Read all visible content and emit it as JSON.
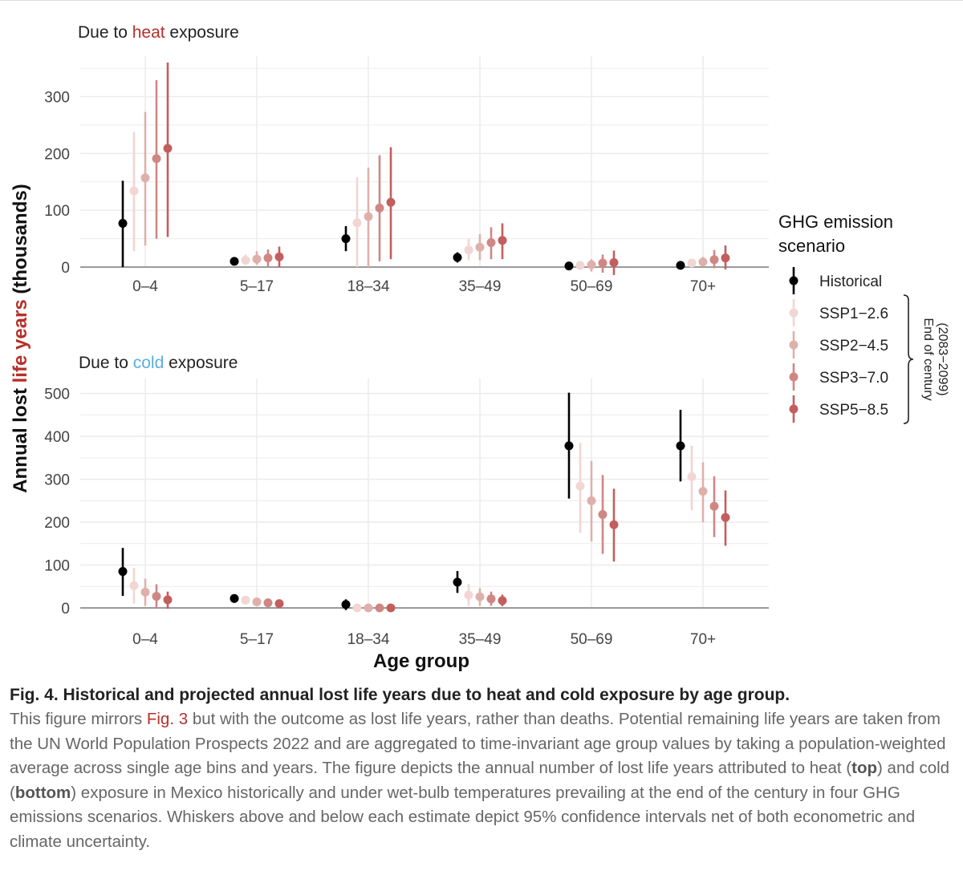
{
  "chart_data": [
    {
      "type": "scatter",
      "title": "Due to heat exposure",
      "title_parts": [
        "Due to ",
        "heat",
        " exposure"
      ],
      "categories": [
        "0–4",
        "5–17",
        "18–34",
        "35–49",
        "50–69",
        "70+"
      ],
      "ylim": [
        0,
        360
      ],
      "yticks": [
        0,
        100,
        200,
        300
      ],
      "grid": true,
      "series": [
        {
          "name": "Historical",
          "values": [
            77,
            10,
            50,
            17,
            2,
            3
          ],
          "lower": [
            0,
            3,
            28,
            8,
            0,
            0
          ],
          "upper": [
            152,
            17,
            72,
            26,
            4,
            6
          ]
        },
        {
          "name": "SSP1−2.6",
          "values": [
            134,
            12,
            78,
            30,
            3,
            7
          ],
          "lower": [
            28,
            4,
            0,
            12,
            -5,
            2
          ],
          "upper": [
            238,
            22,
            158,
            50,
            10,
            12
          ]
        },
        {
          "name": "SSP2−4.5",
          "values": [
            157,
            14,
            89,
            35,
            4,
            9
          ],
          "lower": [
            38,
            4,
            0,
            12,
            -8,
            1
          ],
          "upper": [
            273,
            28,
            175,
            58,
            14,
            18
          ]
        },
        {
          "name": "SSP3−7.0",
          "values": [
            191,
            16,
            104,
            43,
            7,
            13
          ],
          "lower": [
            50,
            1,
            10,
            14,
            -10,
            -2
          ],
          "upper": [
            329,
            31,
            197,
            70,
            22,
            30
          ]
        },
        {
          "name": "SSP5−8.5",
          "values": [
            209,
            18,
            114,
            47,
            8,
            16
          ],
          "lower": [
            53,
            0,
            14,
            14,
            -14,
            -4
          ],
          "upper": [
            360,
            36,
            211,
            77,
            29,
            38
          ]
        }
      ]
    },
    {
      "type": "scatter",
      "title": "Due to cold exposure",
      "title_parts": [
        "Due to ",
        "cold",
        " exposure"
      ],
      "categories": [
        "0–4",
        "5–17",
        "18–34",
        "35–49",
        "50–69",
        "70+"
      ],
      "ylim": [
        0,
        520
      ],
      "yticks": [
        0,
        100,
        200,
        300,
        400,
        500
      ],
      "grid": true,
      "series": [
        {
          "name": "Historical",
          "values": [
            85,
            22,
            8,
            60,
            378,
            378
          ],
          "lower": [
            28,
            12,
            -5,
            35,
            255,
            295
          ],
          "upper": [
            140,
            32,
            20,
            86,
            502,
            462
          ]
        },
        {
          "name": "SSP1−2.6",
          "values": [
            52,
            18,
            0,
            30,
            284,
            306
          ],
          "lower": [
            10,
            12,
            -2,
            5,
            175,
            228
          ],
          "upper": [
            93,
            25,
            2,
            56,
            385,
            378
          ]
        },
        {
          "name": "SSP2−4.5",
          "values": [
            37,
            14,
            0,
            26,
            250,
            272
          ],
          "lower": [
            5,
            8,
            -2,
            5,
            155,
            200
          ],
          "upper": [
            68,
            20,
            2,
            46,
            343,
            340
          ]
        },
        {
          "name": "SSP3−7.0",
          "values": [
            27,
            12,
            0,
            21,
            218,
            237
          ],
          "lower": [
            0,
            6,
            -2,
            5,
            126,
            165
          ],
          "upper": [
            55,
            17,
            2,
            38,
            310,
            307
          ]
        },
        {
          "name": "SSP5−8.5",
          "values": [
            19,
            10,
            0,
            17,
            194,
            211
          ],
          "lower": [
            -2,
            5,
            -2,
            4,
            108,
            145
          ],
          "upper": [
            38,
            14,
            2,
            31,
            278,
            274
          ]
        }
      ]
    }
  ],
  "axes": {
    "ylabel_parts": [
      "Annual lost ",
      "life years",
      " (thousands)"
    ],
    "xlabel": "Age group"
  },
  "legend": {
    "title_line1": "GHG emission",
    "title_line2": "scenario",
    "items": [
      "Historical",
      "SSP1−2.6",
      "SSP2−4.5",
      "SSP3−7.0",
      "SSP5−8.5"
    ],
    "bracket_line1": "End of century",
    "bracket_line2": "(2083−2099)",
    "placement": "right"
  },
  "colors": {
    "historical": "#000000",
    "ssp126": "#f1d6d3",
    "ssp245": "#dfb0ab",
    "ssp370": "#d08784",
    "ssp585": "#c35e5e",
    "accent_red": "#b5302a",
    "accent_blue": "#5aaee0",
    "grid": "#ececec",
    "axis": "#9a9a9a"
  },
  "caption": {
    "label": "Fig. 4.",
    "title": "Historical and projected annual lost life years due to heat and cold exposure by age group.",
    "body_1": "This figure mirrors ",
    "body_ref": "Fig. 3",
    "body_2": " but with the outcome as lost life years, rather than deaths. Potential remaining life years are taken from the UN World Population Prospects 2022 and are aggregated to time-invariant age group values by taking a population-weighted average across single age bins and years. The figure depicts the annual number of lost life years attributed to heat (",
    "body_top": "top",
    "body_3": ") and cold (",
    "body_bottom": "bottom",
    "body_4": ") exposure in Mexico historically and under wet-bulb temperatures prevailing at the end of the century in four GHG emissions scenarios. Whiskers above and below each estimate depict 95% confidence intervals net of both econometric and climate uncertainty."
  }
}
